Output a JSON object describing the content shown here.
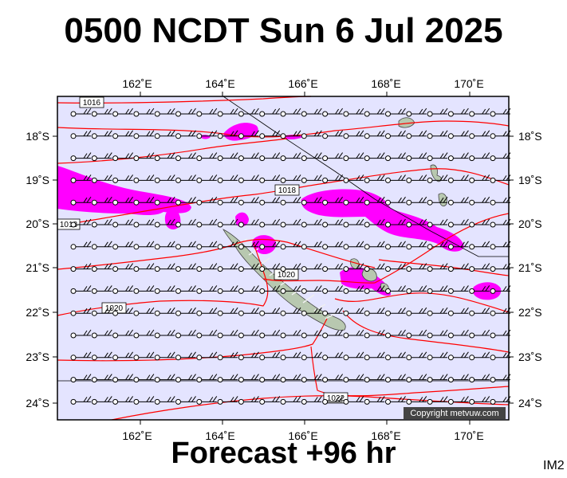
{
  "header": {
    "title": "0500 NCDT Sun 6 Jul 2025"
  },
  "footer": {
    "forecast": "Forecast +96 hr",
    "code": "IM2"
  },
  "map": {
    "lon_labels": [
      "162˚E",
      "164˚E",
      "166˚E",
      "168˚E",
      "170˚E"
    ],
    "lat_labels": [
      "18˚S",
      "19˚S",
      "20˚S",
      "21˚S",
      "22˚S",
      "23˚S",
      "24˚S"
    ],
    "isobar_labels": [
      "1016",
      "1018",
      "1018",
      "1020",
      "1020",
      "1022"
    ],
    "copyright": "Copyright metvuw.com",
    "colors": {
      "ocean": "#e4e4ff",
      "isobar": "#ff0000",
      "rain": "#ff00ff",
      "land": "#b8c8b0"
    }
  }
}
